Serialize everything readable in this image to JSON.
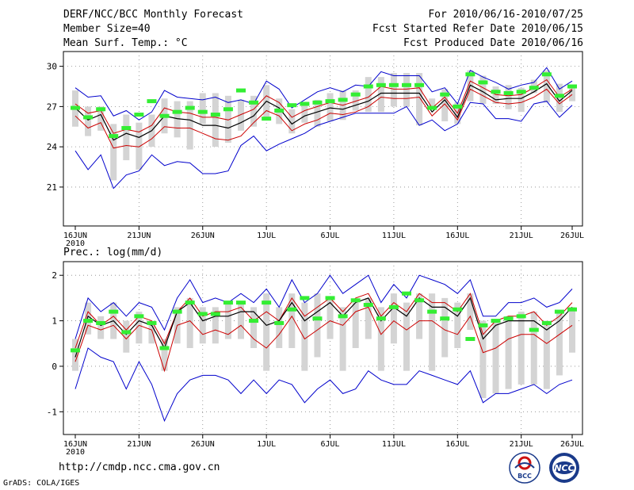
{
  "header": {
    "title": "DERF/NCC/BCC Monthly Forecast",
    "member_size": "Member Size=40",
    "variable": "Mean Surf. Temp.: °C",
    "forecast_for": "For 2010/06/16-2010/07/25",
    "refer_date": "Fcst Started Refer Date 2010/06/15",
    "produced_date": "Fcst Produced Date 2010/06/16"
  },
  "footer": {
    "url": "http://cmdp.ncc.cma.gov.cn",
    "credit": "GrADS: COLA/IGES",
    "logo_bcc_label": "BCC",
    "logo_ncc_label": "NCC"
  },
  "colors": {
    "max_line": "#0000cc",
    "min_line": "#0000cc",
    "upper_line": "#cc0000",
    "lower_line": "#cc0000",
    "mean_line": "#000000",
    "box": "#d4d4d4",
    "marker": "#33ee33",
    "grid": "#888888"
  },
  "chart_data": [
    {
      "type": "line",
      "title": "Mean Surf. Temp.: °C",
      "x_ticks": [
        {
          "index": 0,
          "label": "16JUN",
          "sublabel": "2010"
        },
        {
          "index": 5,
          "label": "21JUN"
        },
        {
          "index": 10,
          "label": "26JUN"
        },
        {
          "index": 15,
          "label": "1JUL"
        },
        {
          "index": 20,
          "label": "6JUL"
        },
        {
          "index": 25,
          "label": "11JUL"
        },
        {
          "index": 30,
          "label": "16JUL"
        },
        {
          "index": 35,
          "label": "21JUL"
        },
        {
          "index": 39,
          "label": "26JUL"
        }
      ],
      "y_ticks": [
        21,
        24,
        27,
        30
      ],
      "y_tick_labels": [
        "21",
        "24",
        "27",
        "30"
      ],
      "ylim": [
        18.1,
        31.1
      ],
      "series": [
        {
          "name": "max",
          "values": [
            28.4,
            27.7,
            27.8,
            26.3,
            26.7,
            26.0,
            26.6,
            28.2,
            27.7,
            27.6,
            27.5,
            27.7,
            27.3,
            27.5,
            27.2,
            28.9,
            28.3,
            26.9,
            27.5,
            28.1,
            28.4,
            28.1,
            28.6,
            28.5,
            29.6,
            29.3,
            29.3,
            29.3,
            28.1,
            28.4,
            27.2,
            29.7,
            29.2,
            28.8,
            28.3,
            28.6,
            28.8,
            29.9,
            28.3,
            28.9
          ]
        },
        {
          "name": "upper",
          "values": [
            27.2,
            26.5,
            26.7,
            25.0,
            25.3,
            25.1,
            25.6,
            26.9,
            26.6,
            26.5,
            26.2,
            26.2,
            26.0,
            26.4,
            26.8,
            27.8,
            27.3,
            26.2,
            26.7,
            27.0,
            27.3,
            27.1,
            27.4,
            27.7,
            28.5,
            28.3,
            28.3,
            28.4,
            26.9,
            27.7,
            26.5,
            28.9,
            28.4,
            27.9,
            27.8,
            27.9,
            28.4,
            29.0,
            27.7,
            28.3
          ]
        },
        {
          "name": "mean",
          "values": [
            26.9,
            26.0,
            26.4,
            24.5,
            25.0,
            24.7,
            25.2,
            26.3,
            26.1,
            26.0,
            25.6,
            25.6,
            25.4,
            25.8,
            26.3,
            27.4,
            26.9,
            25.7,
            26.3,
            26.6,
            26.9,
            26.8,
            27.1,
            27.4,
            28.0,
            28.0,
            28.0,
            28.0,
            26.6,
            27.5,
            26.2,
            28.6,
            28.1,
            27.5,
            27.6,
            27.6,
            28.1,
            28.7,
            27.4,
            28.2
          ]
        },
        {
          "name": "lower",
          "values": [
            26.3,
            25.4,
            25.8,
            23.9,
            24.1,
            24.0,
            24.6,
            25.5,
            25.4,
            25.4,
            25.0,
            24.6,
            24.5,
            24.8,
            25.8,
            26.7,
            26.3,
            25.2,
            25.7,
            26.0,
            26.5,
            26.4,
            26.6,
            27.0,
            27.7,
            27.6,
            27.6,
            27.7,
            26.3,
            27.2,
            26.0,
            28.3,
            27.8,
            27.3,
            27.2,
            27.3,
            27.7,
            28.3,
            27.2,
            27.9
          ]
        },
        {
          "name": "min",
          "values": [
            23.7,
            22.3,
            23.4,
            20.9,
            21.9,
            22.2,
            23.4,
            22.6,
            22.9,
            22.8,
            22.0,
            22.0,
            22.2,
            24.1,
            24.8,
            23.7,
            24.2,
            24.6,
            25.0,
            25.6,
            25.9,
            26.2,
            26.5,
            26.5,
            26.5,
            26.5,
            27.0,
            25.6,
            26.0,
            25.2,
            25.7,
            27.3,
            27.2,
            26.1,
            26.1,
            25.9,
            27.2,
            27.4,
            26.2,
            27.1
          ]
        }
      ],
      "box_range": {
        "low": [
          25.5,
          24.8,
          25.2,
          21.5,
          23.0,
          22.3,
          24.0,
          25.0,
          24.7,
          23.8,
          25.7,
          24.0,
          24.3,
          25.2,
          25.5,
          26.0,
          25.7,
          25.0,
          25.8,
          25.5,
          25.9,
          26.0,
          26.7,
          26.6,
          26.6,
          27.0,
          27.0,
          25.6,
          26.8,
          25.9,
          25.7,
          27.4,
          27.2,
          27.2,
          26.8,
          26.6,
          28.0,
          27.3,
          26.6,
          27.4
        ],
        "high": [
          28.2,
          27.0,
          27.0,
          25.7,
          26.4,
          25.8,
          26.4,
          27.6,
          27.4,
          27.4,
          28.0,
          28.0,
          27.8,
          27.5,
          27.8,
          28.6,
          27.6,
          26.8,
          27.3,
          27.5,
          28.0,
          28.2,
          28.2,
          29.2,
          29.2,
          29.5,
          29.5,
          29.5,
          27.6,
          28.3,
          27.3,
          29.7,
          29.3,
          28.5,
          28.6,
          28.4,
          29.0,
          29.7,
          28.7,
          28.4
        ]
      },
      "marker_values": [
        26.9,
        26.2,
        26.8,
        24.8,
        25.4,
        26.4,
        27.4,
        26.3,
        26.6,
        26.9,
        26.6,
        26.4,
        26.8,
        28.2,
        27.3,
        26.1,
        26.7,
        27.1,
        27.2,
        27.3,
        27.4,
        27.5,
        27.9,
        28.5,
        28.6,
        28.6,
        28.6,
        28.6,
        26.9,
        27.9,
        27.0,
        29.4,
        28.8,
        28.1,
        28.0,
        28.1,
        28.4,
        29.4,
        27.8,
        28.5
      ]
    },
    {
      "type": "line",
      "title": "Prec.: log(mm/d)",
      "x_ticks": [
        {
          "index": 0,
          "label": "16JUN",
          "sublabel": "2010"
        },
        {
          "index": 5,
          "label": "21JUN"
        },
        {
          "index": 10,
          "label": "26JUN"
        },
        {
          "index": 15,
          "label": "1JUL"
        },
        {
          "index": 20,
          "label": "6JUL"
        },
        {
          "index": 25,
          "label": "11JUL"
        },
        {
          "index": 30,
          "label": "16JUL"
        },
        {
          "index": 35,
          "label": "21JUL"
        },
        {
          "index": 39,
          "label": "26JUL"
        }
      ],
      "y_ticks": [
        -1,
        0,
        1,
        2
      ],
      "y_tick_labels": [
        "-1",
        "0",
        "1",
        "2"
      ],
      "ylim": [
        -1.5,
        2.3
      ],
      "series": [
        {
          "name": "max",
          "values": [
            0.6,
            1.5,
            1.2,
            1.4,
            1.1,
            1.4,
            1.3,
            0.8,
            1.5,
            1.9,
            1.4,
            1.5,
            1.4,
            1.6,
            1.4,
            1.7,
            1.3,
            1.9,
            1.4,
            1.6,
            2.0,
            1.6,
            1.8,
            2.0,
            1.4,
            1.8,
            1.5,
            2.0,
            1.9,
            1.8,
            1.6,
            1.9,
            1.1,
            1.1,
            1.4,
            1.4,
            1.5,
            1.3,
            1.4,
            1.7
          ]
        },
        {
          "name": "upper",
          "values": [
            0.4,
            1.2,
            0.9,
            1.1,
            0.8,
            1.1,
            1.0,
            0.5,
            1.2,
            1.5,
            1.1,
            1.2,
            1.2,
            1.3,
            1.0,
            1.2,
            1.0,
            1.5,
            1.1,
            1.3,
            1.5,
            1.2,
            1.5,
            1.6,
            1.1,
            1.4,
            1.2,
            1.6,
            1.4,
            1.4,
            1.2,
            1.6,
            0.7,
            1.0,
            1.1,
            1.1,
            1.2,
            0.9,
            1.1,
            1.4
          ]
        },
        {
          "name": "mean",
          "values": [
            0.2,
            1.1,
            0.9,
            1.0,
            0.7,
            1.0,
            0.9,
            0.4,
            1.2,
            1.4,
            1.0,
            1.1,
            1.1,
            1.2,
            1.2,
            0.9,
            1.0,
            1.4,
            1.0,
            1.2,
            1.4,
            1.1,
            1.4,
            1.5,
            1.0,
            1.3,
            1.1,
            1.5,
            1.3,
            1.3,
            1.1,
            1.5,
            0.6,
            0.9,
            1.0,
            1.0,
            1.0,
            0.8,
            1.0,
            1.3
          ]
        },
        {
          "name": "lower",
          "values": [
            0.1,
            0.9,
            0.8,
            0.9,
            0.6,
            0.9,
            0.8,
            -0.1,
            0.9,
            1.0,
            0.7,
            0.8,
            0.7,
            0.9,
            0.6,
            0.4,
            0.7,
            1.1,
            0.6,
            0.8,
            1.0,
            0.9,
            1.2,
            1.3,
            0.7,
            1.0,
            0.8,
            1.0,
            1.0,
            0.8,
            0.7,
            1.1,
            0.3,
            0.4,
            0.6,
            0.7,
            0.7,
            0.5,
            0.7,
            0.9
          ]
        },
        {
          "name": "min",
          "values": [
            -0.5,
            0.4,
            0.2,
            0.1,
            -0.5,
            0.1,
            -0.4,
            -1.2,
            -0.6,
            -0.3,
            -0.2,
            -0.2,
            -0.3,
            -0.6,
            -0.3,
            -0.6,
            -0.3,
            -0.4,
            -0.8,
            -0.5,
            -0.3,
            -0.6,
            -0.5,
            -0.1,
            -0.3,
            -0.4,
            -0.4,
            -0.1,
            -0.2,
            -0.3,
            -0.4,
            -0.1,
            -0.8,
            -0.6,
            -0.6,
            -0.5,
            -0.4,
            -0.6,
            -0.4,
            -0.3
          ]
        },
        {
          "name": "markers_placeholder",
          "values": []
        }
      ],
      "box_range": {
        "low": [
          -0.1,
          0.7,
          0.6,
          0.6,
          0.3,
          0.5,
          0.5,
          -0.1,
          0.5,
          0.4,
          0.5,
          0.5,
          0.6,
          0.6,
          0.4,
          -0.1,
          0.4,
          0.4,
          -0.1,
          0.2,
          0.6,
          -0.1,
          0.4,
          0.6,
          -0.1,
          0.5,
          -0.1,
          0.6,
          -0.1,
          0.2,
          0.4,
          0.8,
          -0.7,
          -0.6,
          -0.5,
          -0.4,
          -0.4,
          -0.5,
          -0.2,
          0.3
        ],
        "high": [
          0.6,
          1.4,
          1.1,
          1.4,
          1.0,
          1.2,
          1.0,
          0.6,
          1.3,
          1.5,
          1.3,
          1.3,
          1.4,
          1.4,
          1.3,
          1.6,
          1.3,
          1.6,
          1.4,
          1.6,
          1.5,
          1.3,
          1.4,
          1.5,
          1.3,
          1.6,
          1.4,
          1.6,
          1.6,
          1.5,
          1.4,
          1.6,
          1.0,
          1.0,
          1.1,
          1.2,
          1.2,
          1.0,
          1.2,
          1.3
        ]
      },
      "marker_values": [
        0.35,
        1.0,
        0.95,
        1.2,
        0.75,
        1.1,
        0.95,
        0.4,
        1.2,
        1.4,
        1.15,
        1.15,
        1.4,
        1.4,
        1.0,
        1.4,
        0.95,
        1.25,
        1.5,
        1.05,
        1.5,
        1.1,
        1.45,
        1.35,
        1.05,
        1.3,
        1.6,
        1.45,
        1.2,
        1.05,
        1.25,
        0.6,
        0.9,
        1.0,
        1.05,
        1.1,
        0.8,
        0.95,
        1.2,
        1.25
      ]
    }
  ]
}
